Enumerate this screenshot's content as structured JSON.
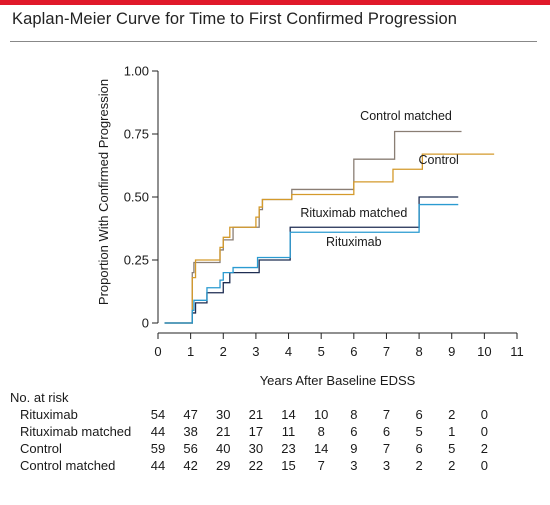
{
  "title": "Kaplan-Meier Curve for Time to First Confirmed Progression",
  "chart_data": {
    "type": "line",
    "step": true,
    "title": "Kaplan-Meier Curve for Time to First Confirmed Progression",
    "xlabel": "Years After Baseline EDSS",
    "ylabel": "Proportion With Confirmed Progression",
    "xlim": [
      0,
      11
    ],
    "ylim": [
      0,
      1
    ],
    "x_ticks": [
      "0",
      "1",
      "2",
      "3",
      "4",
      "5",
      "6",
      "7",
      "8",
      "9",
      "10",
      "11"
    ],
    "y_ticks": [
      "0",
      "0.25",
      "0.50",
      "0.75",
      "1.00"
    ],
    "grid": false,
    "series": [
      {
        "name": "Control matched",
        "color": "#8a7e74",
        "points": [
          [
            0.2,
            0
          ],
          [
            0.95,
            0
          ],
          [
            1.05,
            0.2
          ],
          [
            1.1,
            0.24
          ],
          [
            1.6,
            0.24
          ],
          [
            1.9,
            0.29
          ],
          [
            2.0,
            0.33
          ],
          [
            2.3,
            0.38
          ],
          [
            2.9,
            0.38
          ],
          [
            3.1,
            0.45
          ],
          [
            3.2,
            0.49
          ],
          [
            4.0,
            0.49
          ],
          [
            4.1,
            0.53
          ],
          [
            5.9,
            0.53
          ],
          [
            6.0,
            0.65
          ],
          [
            7.2,
            0.65
          ],
          [
            7.25,
            0.76
          ],
          [
            9.3,
            0.76
          ]
        ]
      },
      {
        "name": "Control",
        "color": "#d49a2b",
        "points": [
          [
            0.2,
            0
          ],
          [
            0.95,
            0
          ],
          [
            1.05,
            0.18
          ],
          [
            1.15,
            0.25
          ],
          [
            1.6,
            0.25
          ],
          [
            1.9,
            0.3
          ],
          [
            2.0,
            0.34
          ],
          [
            2.2,
            0.38
          ],
          [
            2.9,
            0.38
          ],
          [
            3.0,
            0.42
          ],
          [
            3.1,
            0.46
          ],
          [
            3.2,
            0.49
          ],
          [
            4.0,
            0.49
          ],
          [
            4.1,
            0.51
          ],
          [
            5.9,
            0.51
          ],
          [
            6.0,
            0.56
          ],
          [
            7.1,
            0.56
          ],
          [
            7.2,
            0.61
          ],
          [
            8.0,
            0.61
          ],
          [
            8.1,
            0.67
          ],
          [
            10.3,
            0.67
          ]
        ]
      },
      {
        "name": "Rituximab matched",
        "color": "#1e2d52",
        "points": [
          [
            0.2,
            0
          ],
          [
            1.0,
            0
          ],
          [
            1.05,
            0.04
          ],
          [
            1.15,
            0.08
          ],
          [
            1.4,
            0.08
          ],
          [
            1.5,
            0.12
          ],
          [
            1.9,
            0.12
          ],
          [
            2.0,
            0.16
          ],
          [
            2.2,
            0.2
          ],
          [
            3.0,
            0.2
          ],
          [
            3.1,
            0.25
          ],
          [
            4.0,
            0.25
          ],
          [
            4.05,
            0.38
          ],
          [
            7.95,
            0.38
          ],
          [
            8.0,
            0.5
          ],
          [
            9.2,
            0.5
          ]
        ]
      },
      {
        "name": "Rituximab",
        "color": "#2a9bd1",
        "points": [
          [
            0.2,
            0
          ],
          [
            1.0,
            0
          ],
          [
            1.05,
            0.05
          ],
          [
            1.1,
            0.09
          ],
          [
            1.4,
            0.09
          ],
          [
            1.5,
            0.14
          ],
          [
            1.8,
            0.14
          ],
          [
            1.9,
            0.17
          ],
          [
            2.0,
            0.2
          ],
          [
            2.3,
            0.22
          ],
          [
            3.0,
            0.22
          ],
          [
            3.05,
            0.26
          ],
          [
            4.0,
            0.26
          ],
          [
            4.05,
            0.36
          ],
          [
            7.95,
            0.36
          ],
          [
            8.0,
            0.47
          ],
          [
            9.2,
            0.47
          ]
        ]
      }
    ],
    "annotations": [
      {
        "text": "Control matched",
        "x": 7.6,
        "y": 0.805
      },
      {
        "text": "Control",
        "x": 8.6,
        "y": 0.63
      },
      {
        "text": "Rituximab matched",
        "x": 6.0,
        "y": 0.42
      },
      {
        "text": "Rituximab",
        "x": 6.0,
        "y": 0.305
      }
    ]
  },
  "risk_table": {
    "header": "No. at risk",
    "columns": [
      "0",
      "1",
      "2",
      "3",
      "4",
      "5",
      "6",
      "7",
      "8",
      "9",
      "10"
    ],
    "rows": [
      {
        "name": "Rituximab",
        "values": [
          "54",
          "47",
          "30",
          "21",
          "14",
          "10",
          "8",
          "7",
          "6",
          "2",
          "0"
        ]
      },
      {
        "name": "Rituximab matched",
        "values": [
          "44",
          "38",
          "21",
          "17",
          "11",
          "8",
          "6",
          "6",
          "5",
          "1",
          "0"
        ]
      },
      {
        "name": "Control",
        "values": [
          "59",
          "56",
          "40",
          "30",
          "23",
          "14",
          "9",
          "7",
          "6",
          "5",
          "2"
        ]
      },
      {
        "name": "Control matched",
        "values": [
          "44",
          "42",
          "29",
          "22",
          "15",
          "7",
          "3",
          "3",
          "2",
          "2",
          "0"
        ]
      }
    ]
  }
}
